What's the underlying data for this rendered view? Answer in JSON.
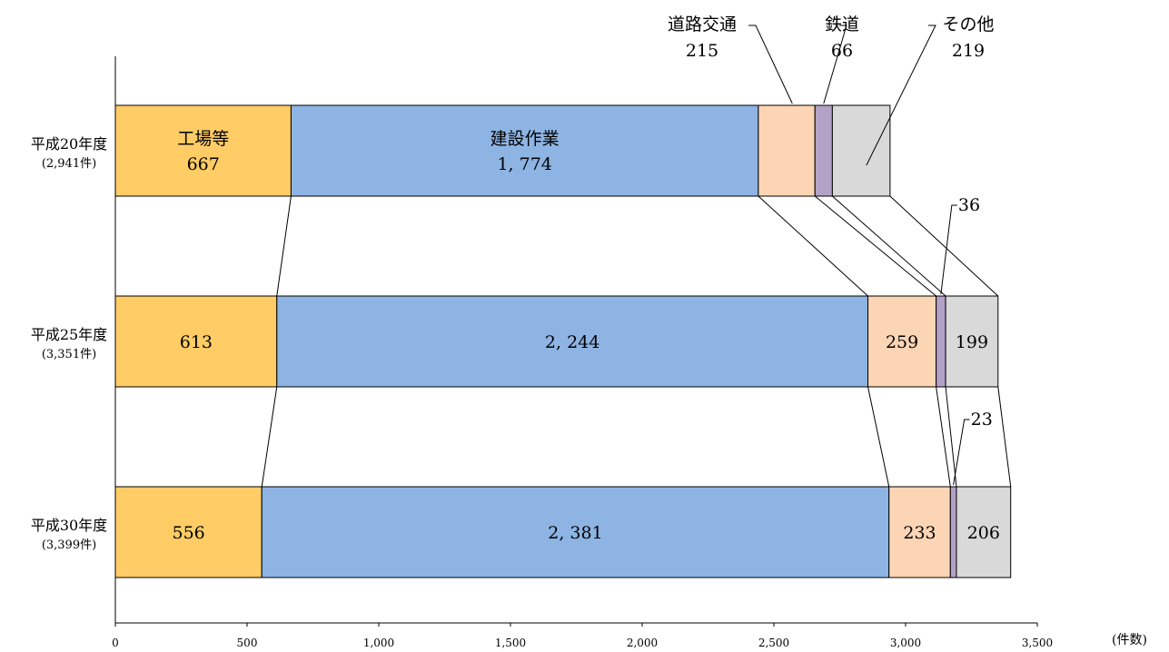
{
  "chart_data": {
    "type": "bar",
    "orientation": "horizontal",
    "stacked": true,
    "categories": [
      {
        "name": "平成20年度",
        "total": "(2,941件)"
      },
      {
        "name": "平成25年度",
        "total": "(3,351件)"
      },
      {
        "name": "平成30年度",
        "total": "(3,399件)"
      }
    ],
    "series": [
      {
        "name": "工場等",
        "color": "#FFCC66",
        "values": [
          667,
          613,
          556
        ],
        "labels": [
          "667",
          "613",
          "556"
        ]
      },
      {
        "name": "建設作業",
        "color": "#8EB4E3",
        "values": [
          1774,
          2244,
          2381
        ],
        "labels": [
          "1, 774",
          "2, 244",
          "2, 381"
        ]
      },
      {
        "name": "道路交通",
        "color": "#FCD5B5",
        "values": [
          215,
          259,
          233
        ],
        "labels": [
          "215",
          "259",
          "233"
        ]
      },
      {
        "name": "鉄道",
        "color": "#B3A2C7",
        "values": [
          66,
          36,
          23
        ],
        "labels": [
          "66",
          "36",
          "23"
        ]
      },
      {
        "name": "その他",
        "color": "#D9D9D9",
        "values": [
          219,
          199,
          206
        ],
        "labels": [
          "219",
          "199",
          "206"
        ]
      }
    ],
    "xlim": [
      0,
      3500
    ],
    "xticks": [
      {
        "value": 0,
        "label": "0"
      },
      {
        "value": 500,
        "label": "500"
      },
      {
        "value": 1000,
        "label": "1,000"
      },
      {
        "value": 1500,
        "label": "1,500"
      },
      {
        "value": 2000,
        "label": "2,000"
      },
      {
        "value": 2500,
        "label": "2,500"
      },
      {
        "value": 3000,
        "label": "3,000"
      },
      {
        "value": 3500,
        "label": "3,500"
      }
    ],
    "xunit": "(件数)",
    "grid": false,
    "legend": "none"
  }
}
